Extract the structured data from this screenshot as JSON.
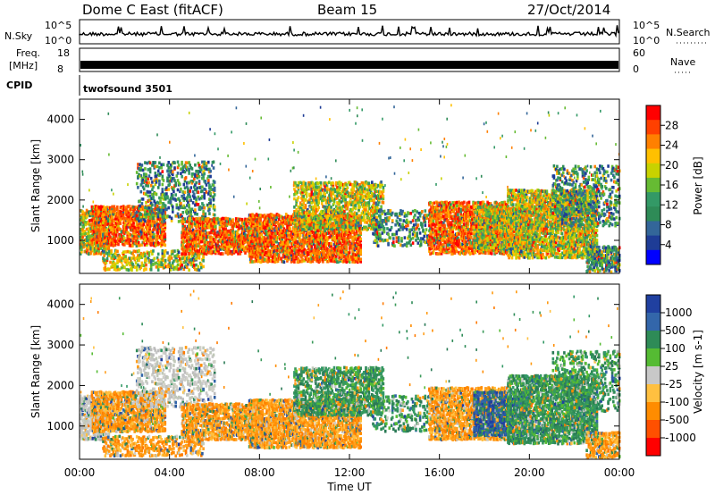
{
  "header": {
    "station": "Dome C East (fitACF)",
    "beam": "Beam 15",
    "date": "27/Oct/2014"
  },
  "top_panels": {
    "nsky_label": "N.Sky",
    "nsky_ticks": [
      "10^5",
      "10^0"
    ],
    "nsearch_label": "N.Search",
    "nsearch_ticks": [
      "10^5",
      "10^0"
    ],
    "freq_label_1": "Freq.",
    "freq_label_2": "[MHz]",
    "freq_ticks": [
      "18",
      "8"
    ],
    "nave_label": "Nave",
    "nave_ticks": [
      "60",
      "0"
    ],
    "cpid_label": "CPID",
    "cpid_value": "twofsound 3501"
  },
  "chart_data": [
    {
      "type": "heatmap",
      "name": "power",
      "ylabel": "Slant Range [km]",
      "ylim": [
        180,
        4500
      ],
      "yticks": [
        "4000",
        "3000",
        "2000",
        "1000"
      ],
      "colorbar_label": "Power [dB]",
      "colorbar_ticks": [
        "28",
        "24",
        "20",
        "16",
        "12",
        "8",
        "4"
      ],
      "colorbar_colors": [
        "#ff0000",
        "#ff4000",
        "#ff8000",
        "#ffc000",
        "#c8d200",
        "#66bb33",
        "#339966",
        "#2e8b57",
        "#336699",
        "#1e3c96",
        "#0000ff"
      ]
    },
    {
      "type": "heatmap",
      "name": "velocity",
      "ylabel": "Slant Range [km]",
      "ylim": [
        180,
        4500
      ],
      "yticks": [
        "4000",
        "3000",
        "2000",
        "1000"
      ],
      "colorbar_label": "Velocity [m s-1]",
      "colorbar_ticks": [
        "1000",
        "500",
        "100",
        "25",
        "-25",
        "-100",
        "-500",
        "-1000"
      ],
      "colorbar_colors": [
        "#2040a0",
        "#3366aa",
        "#2e8b57",
        "#55bb33",
        "#c8c8c8",
        "#ffc040",
        "#ff8c00",
        "#ff5000",
        "#ff0000"
      ]
    }
  ],
  "time_axis": {
    "label": "Time UT",
    "ticks": [
      "00:00",
      "04:00",
      "08:00",
      "12:00",
      "16:00",
      "20:00",
      "00:00"
    ]
  }
}
